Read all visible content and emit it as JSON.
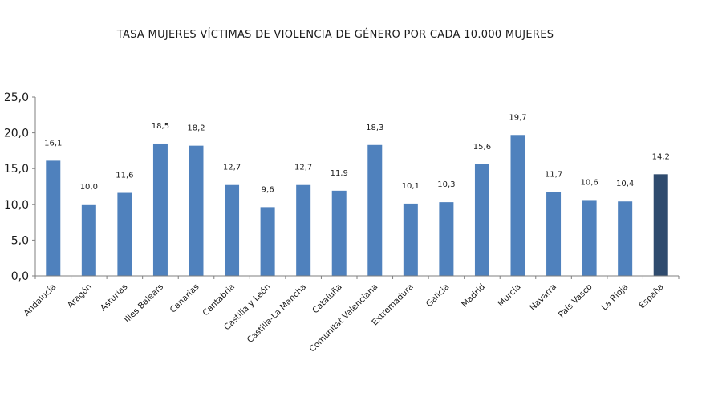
{
  "chart_data": {
    "type": "bar",
    "title": "TASA MUJERES VÍCTIMAS DE VIOLENCIA DE GÉNERO POR CADA 10.000 MUJERES",
    "xlabel": "",
    "ylabel": "",
    "ylim": [
      0,
      25
    ],
    "y_ticks": [
      0,
      5,
      10,
      15,
      20,
      25
    ],
    "y_tick_labels": [
      "0,0",
      "5,0",
      "10,0",
      "15,0",
      "20,0",
      "25,0"
    ],
    "grid": false,
    "legend": "none",
    "categories": [
      "Andalucía",
      "Aragón",
      "Asturias",
      "Illes Balears",
      "Canarias",
      "Cantabria",
      "Castilla y León",
      "Castilla-La Mancha",
      "Cataluña",
      "Comunitat Valenciana",
      "Extremadura",
      "Galicia",
      "Madrid",
      "Murcia",
      "Navarra",
      "País Vasco",
      "La Rioja",
      "España"
    ],
    "values": [
      16.1,
      10.0,
      11.6,
      18.5,
      18.2,
      12.7,
      9.6,
      12.7,
      11.9,
      18.3,
      10.1,
      10.3,
      15.6,
      19.7,
      11.7,
      10.6,
      10.4,
      14.2
    ],
    "value_labels": [
      "16,1",
      "10,0",
      "11,6",
      "18,5",
      "18,2",
      "12,7",
      "9,6",
      "12,7",
      "11,9",
      "18,3",
      "10,1",
      "10,3",
      "15,6",
      "19,7",
      "11,7",
      "10,6",
      "10,4",
      "14,2"
    ],
    "colors": {
      "bar": "#4f81bd",
      "highlight_bar": "#2f4b6e",
      "axis": "#7f7f7f"
    },
    "highlight_category": "España"
  }
}
